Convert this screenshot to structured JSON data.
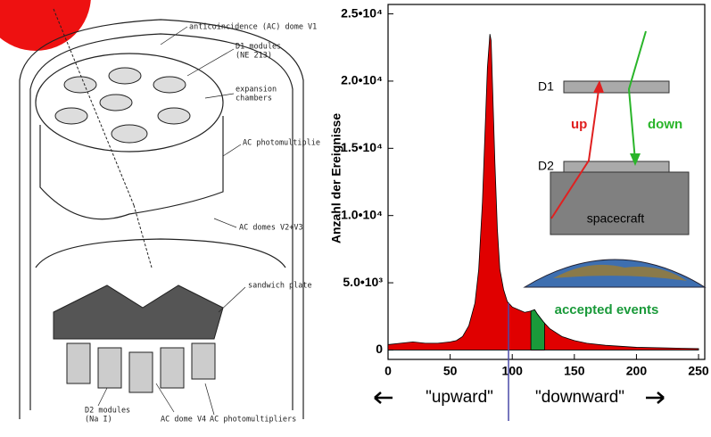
{
  "chart_data": {
    "type": "area",
    "ylabel": "Anzahl der Ereignisse",
    "x": [
      0,
      10,
      20,
      30,
      40,
      50,
      55,
      60,
      65,
      70,
      73,
      76,
      78,
      80,
      82,
      83,
      84,
      86,
      88,
      90,
      93,
      96,
      100,
      105,
      110,
      115,
      118,
      120,
      125,
      130,
      140,
      150,
      160,
      175,
      200,
      225,
      250
    ],
    "values": [
      400,
      500,
      600,
      500,
      500,
      600,
      700,
      1000,
      1800,
      3500,
      6000,
      11000,
      16000,
      21000,
      23500,
      23000,
      20000,
      14000,
      9000,
      6000,
      4500,
      3600,
      3200,
      3000,
      2800,
      2900,
      3000,
      2700,
      2100,
      1600,
      1000,
      700,
      500,
      350,
      200,
      150,
      100
    ],
    "color": "#e00000",
    "xlim": [
      0,
      255
    ],
    "ylim": [
      -700,
      25700
    ],
    "xticks": [
      0,
      50,
      100,
      150,
      200,
      250
    ],
    "yticks": [
      0,
      {
        "value": 5000,
        "label": "5.0•10³"
      },
      {
        "value": 10000,
        "label": "1.0•10⁴"
      },
      {
        "value": 15000,
        "label": "1.5•10⁴"
      },
      {
        "value": 20000,
        "label": "2.0•10⁴"
      },
      {
        "value": 25000,
        "label": "2.5•10⁴"
      }
    ],
    "highlight": {
      "xlim": [
        115,
        126
      ],
      "color": "#1a9a3a",
      "label": "accepted events"
    },
    "vline": {
      "x": 97,
      "color": "#4a4aa8"
    },
    "direction_labels": [
      "\"upward\"",
      "\"downward\""
    ],
    "inset": {
      "d1": "D1",
      "d2": "D2",
      "up": "up",
      "down": "down",
      "spacecraft": "spacecraft"
    }
  },
  "diagram": {
    "labels": [
      "anticoincidence (AC) dome V1",
      "D1 modules",
      "(NE 213)",
      "expansion",
      "chambers",
      "AC photomultiplie",
      "AC domes V2+V3",
      "sandwich plate",
      "D2 modules",
      "(Na I)",
      "AC dome V4",
      "AC photomultipliers"
    ]
  }
}
